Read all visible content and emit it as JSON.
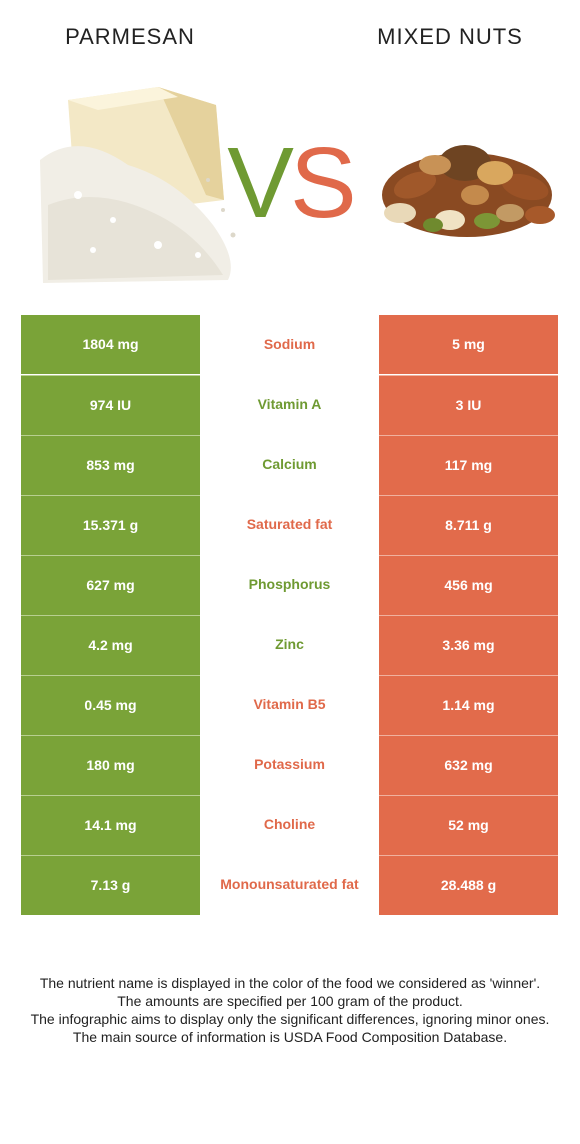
{
  "header": {
    "left_food": "PARMESAN",
    "right_food": "MIXED NUTS",
    "vs_v": "V",
    "vs_s": "S"
  },
  "colors": {
    "left_accent": "#7aa338",
    "right_accent": "#e26b4b"
  },
  "rows": [
    {
      "left": "1804 mg",
      "nutrient": "Sodium",
      "right": "5 mg",
      "winner": "right"
    },
    {
      "left": "974 IU",
      "nutrient": "Vitamin A",
      "right": "3 IU",
      "winner": "left"
    },
    {
      "left": "853 mg",
      "nutrient": "Calcium",
      "right": "117 mg",
      "winner": "left"
    },
    {
      "left": "15.371 g",
      "nutrient": "Saturated fat",
      "right": "8.711 g",
      "winner": "right"
    },
    {
      "left": "627 mg",
      "nutrient": "Phosphorus",
      "right": "456 mg",
      "winner": "left"
    },
    {
      "left": "4.2 mg",
      "nutrient": "Zinc",
      "right": "3.36 mg",
      "winner": "left"
    },
    {
      "left": "0.45 mg",
      "nutrient": "Vitamin B5",
      "right": "1.14 mg",
      "winner": "right"
    },
    {
      "left": "180 mg",
      "nutrient": "Potassium",
      "right": "632 mg",
      "winner": "right"
    },
    {
      "left": "14.1 mg",
      "nutrient": "Choline",
      "right": "52 mg",
      "winner": "right"
    },
    {
      "left": "7.13 g",
      "nutrient": "Monounsaturated fat",
      "right": "28.488 g",
      "winner": "right"
    }
  ],
  "footer": {
    "line1": "The nutrient name is displayed in the color of the food we considered as 'winner'.",
    "line2": "The amounts are specified per 100 gram of the product.",
    "line3": "The infographic aims to display only the significant differences, ignoring minor ones.",
    "line4": "The main source of information is USDA Food Composition Database."
  }
}
